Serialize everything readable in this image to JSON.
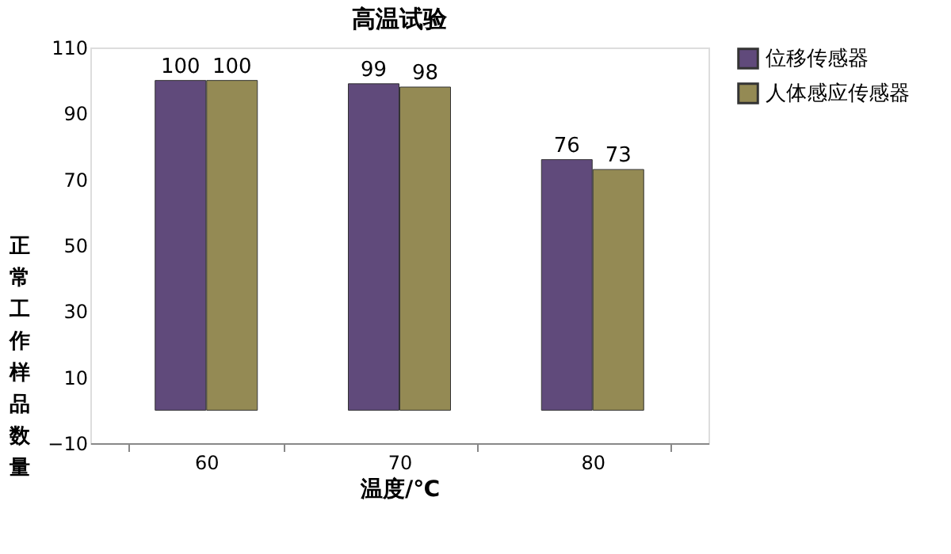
{
  "chart_data": {
    "type": "bar",
    "title": "高温试验",
    "xlabel": "温度/℃",
    "ylabel": "正常工作样品数量",
    "categories": [
      "60",
      "70",
      "80"
    ],
    "series": [
      {
        "name": "位移传感器",
        "color": "#604a7b",
        "values": [
          100,
          99,
          76
        ]
      },
      {
        "name": "人体感应传感器",
        "color": "#948a54",
        "values": [
          100,
          98,
          73
        ]
      }
    ],
    "ylim": [
      -10,
      110
    ],
    "yticks": [
      -10,
      10,
      30,
      50,
      70,
      90,
      110
    ],
    "grid": false,
    "legend": "right",
    "data_labels": true
  }
}
